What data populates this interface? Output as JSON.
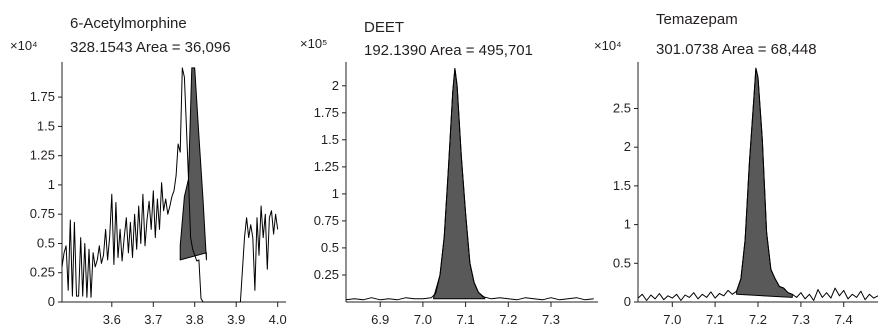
{
  "figure": {
    "fill_color": "#595959",
    "line_color": "#000000",
    "text_color": "#231f20"
  },
  "chart_data": [
    {
      "type": "area",
      "title": "6-Acetylmorphine",
      "subtitle": "328.1543 Area = 36,096",
      "ymultiplier": "×10⁴",
      "xlim": [
        3.48,
        4.02
      ],
      "ylim": [
        0,
        2.05
      ],
      "xticks": [
        3.6,
        3.7,
        3.8,
        3.9,
        4.0
      ],
      "xticklabels": [
        "3.6",
        "3.7",
        "3.8",
        "3.9",
        "4.0"
      ],
      "yticks": [
        0,
        0.25,
        0.5,
        0.75,
        1,
        1.25,
        1.5,
        1.75
      ],
      "yticklabels": [
        "0",
        "0.25",
        "0.5",
        "0.75",
        "1",
        "1.25",
        "1.5",
        "1.75"
      ],
      "trace": {
        "x": [
          3.48,
          3.485,
          3.49,
          3.495,
          3.5,
          3.505,
          3.51,
          3.515,
          3.52,
          3.525,
          3.53,
          3.535,
          3.54,
          3.545,
          3.55,
          3.555,
          3.56,
          3.565,
          3.57,
          3.575,
          3.58,
          3.585,
          3.59,
          3.595,
          3.6,
          3.605,
          3.61,
          3.615,
          3.62,
          3.625,
          3.63,
          3.635,
          3.64,
          3.645,
          3.65,
          3.655,
          3.66,
          3.665,
          3.67,
          3.675,
          3.68,
          3.685,
          3.69,
          3.695,
          3.7,
          3.705,
          3.71,
          3.715,
          3.72,
          3.725,
          3.73,
          3.735,
          3.74,
          3.745,
          3.75,
          3.755,
          3.76,
          3.765,
          3.77,
          3.775,
          3.78,
          3.785,
          3.79,
          3.795,
          3.8,
          3.805,
          3.81,
          3.815,
          3.82,
          3.825,
          3.83,
          3.84,
          3.85,
          3.86,
          3.87,
          3.88,
          3.89,
          3.9,
          3.91,
          3.92,
          3.925,
          3.93,
          3.935,
          3.94,
          3.945,
          3.95,
          3.955,
          3.96,
          3.965,
          3.97,
          3.975,
          3.98,
          3.985,
          3.99,
          3.995,
          4.0
        ],
        "y": [
          0.3,
          0.42,
          0.48,
          0.1,
          0.7,
          0.05,
          0.68,
          0.05,
          0.05,
          0.55,
          0.05,
          0.5,
          0.04,
          0.45,
          0.04,
          0.42,
          0.3,
          0.36,
          0.48,
          0.33,
          0.4,
          0.62,
          0.36,
          0.56,
          0.92,
          0.32,
          0.85,
          0.38,
          0.62,
          0.35,
          0.55,
          0.72,
          0.42,
          0.68,
          0.38,
          0.75,
          0.45,
          0.82,
          0.5,
          0.92,
          0.48,
          0.7,
          0.86,
          0.62,
          0.95,
          0.55,
          0.88,
          0.62,
          1.02,
          0.78,
          0.88,
          0.75,
          0.82,
          0.9,
          0.95,
          1.08,
          1.35,
          1.28,
          2.0,
          1.92,
          1.5,
          1.05,
          0.55,
          0.45,
          0.4,
          0.35,
          0.36,
          0.03,
          0.0,
          0.0,
          0.0,
          0.0,
          0.0,
          0.0,
          0.0,
          0.0,
          0.0,
          0.0,
          0.0,
          0.55,
          0.72,
          0.55,
          0.66,
          0.55,
          0.1,
          0.72,
          0.4,
          0.82,
          0.55,
          0.75,
          0.28,
          0.72,
          0.78,
          0.58,
          0.75,
          0.62
        ]
      },
      "peak": {
        "x": [
          3.765,
          3.775,
          3.785,
          3.793,
          3.8,
          3.81,
          3.82,
          3.828
        ],
        "y": [
          0.48,
          0.9,
          1.05,
          2.0,
          2.0,
          1.42,
          0.88,
          0.36
        ],
        "baseline": [
          0.36,
          0.42
        ]
      }
    },
    {
      "type": "area",
      "title": "DEET",
      "subtitle": "192.1390 Area = 495,701",
      "ymultiplier": "×10⁵",
      "xlim": [
        6.82,
        7.41
      ],
      "ylim": [
        0,
        2.22
      ],
      "xticks": [
        6.9,
        7.0,
        7.1,
        7.2,
        7.3
      ],
      "xticklabels": [
        "6.9",
        "7.0",
        "7.1",
        "7.2",
        "7.3"
      ],
      "yticks": [
        0.5,
        1,
        1.5,
        2
      ],
      "yticklabels": [
        "0.5",
        "1",
        "1.5",
        "2"
      ],
      "yticks_minor": [
        0.25,
        0.75,
        1.25,
        1.75
      ],
      "yticklabels_minor": [
        "0.25",
        "0.75",
        "1.25",
        "1.75"
      ],
      "trace": {
        "x": [
          6.82,
          6.84,
          6.86,
          6.88,
          6.9,
          6.92,
          6.94,
          6.96,
          6.98,
          7.0,
          7.02,
          7.03,
          7.04,
          7.05,
          7.06,
          7.07,
          7.075,
          7.08,
          7.09,
          7.1,
          7.11,
          7.12,
          7.13,
          7.14,
          7.15,
          7.16,
          7.18,
          7.2,
          7.22,
          7.24,
          7.26,
          7.28,
          7.3,
          7.32,
          7.34,
          7.36,
          7.38,
          7.4
        ],
        "y": [
          0.02,
          0.03,
          0.02,
          0.04,
          0.02,
          0.03,
          0.02,
          0.04,
          0.03,
          0.03,
          0.04,
          0.08,
          0.25,
          0.6,
          1.25,
          1.95,
          2.16,
          2.0,
          1.35,
          0.82,
          0.36,
          0.18,
          0.09,
          0.05,
          0.04,
          0.03,
          0.04,
          0.03,
          0.02,
          0.04,
          0.03,
          0.02,
          0.04,
          0.02,
          0.03,
          0.04,
          0.02,
          0.03
        ]
      },
      "peak": {
        "x": [
          7.025,
          7.04,
          7.05,
          7.06,
          7.07,
          7.075,
          7.08,
          7.09,
          7.1,
          7.11,
          7.12,
          7.13,
          7.145
        ],
        "y": [
          0.04,
          0.25,
          0.6,
          1.25,
          1.95,
          2.16,
          2.0,
          1.35,
          0.82,
          0.36,
          0.18,
          0.09,
          0.04
        ],
        "baseline": [
          0.03,
          0.03
        ]
      }
    },
    {
      "type": "area",
      "title": "Temazepam",
      "subtitle": "301.0738 Area = 68,448",
      "ymultiplier": "×10⁴",
      "xlim": [
        6.92,
        7.48
      ],
      "ylim": [
        0,
        3.1
      ],
      "xticks": [
        7.0,
        7.1,
        7.2,
        7.3,
        7.4
      ],
      "xticklabels": [
        "7.0",
        "7.1",
        "7.2",
        "7.3",
        "7.4"
      ],
      "yticks": [
        0,
        0.5,
        1,
        1.5,
        2,
        2.5
      ],
      "yticklabels": [
        "0",
        "0.5",
        "1",
        "1.5",
        "2",
        "2.5"
      ],
      "trace": {
        "x": [
          6.92,
          6.93,
          6.94,
          6.95,
          6.96,
          6.97,
          6.98,
          6.99,
          7.0,
          7.01,
          7.02,
          7.03,
          7.04,
          7.05,
          7.06,
          7.07,
          7.08,
          7.09,
          7.1,
          7.11,
          7.12,
          7.13,
          7.14,
          7.15,
          7.16,
          7.17,
          7.18,
          7.19,
          7.195,
          7.2,
          7.21,
          7.22,
          7.23,
          7.24,
          7.25,
          7.26,
          7.27,
          7.28,
          7.29,
          7.3,
          7.31,
          7.32,
          7.33,
          7.34,
          7.35,
          7.36,
          7.37,
          7.38,
          7.39,
          7.4,
          7.41,
          7.42,
          7.43,
          7.44,
          7.45,
          7.46,
          7.47,
          7.48
        ],
        "y": [
          0.05,
          0.1,
          0.02,
          0.09,
          0.04,
          0.11,
          0.03,
          0.08,
          0.05,
          0.1,
          0.02,
          0.09,
          0.06,
          0.12,
          0.04,
          0.1,
          0.06,
          0.13,
          0.05,
          0.11,
          0.08,
          0.15,
          0.1,
          0.14,
          0.3,
          0.8,
          1.8,
          2.6,
          3.02,
          2.9,
          2.1,
          0.9,
          0.42,
          0.3,
          0.2,
          0.18,
          0.12,
          0.1,
          0.06,
          0.12,
          0.04,
          0.1,
          0.02,
          0.16,
          0.06,
          0.12,
          0.05,
          0.18,
          0.08,
          0.15,
          0.04,
          0.1,
          0.06,
          0.14,
          0.03,
          0.1,
          0.05,
          0.08
        ]
      },
      "peak": {
        "x": [
          7.15,
          7.16,
          7.17,
          7.18,
          7.19,
          7.195,
          7.2,
          7.21,
          7.22,
          7.23,
          7.24,
          7.25,
          7.26,
          7.27,
          7.28
        ],
        "y": [
          0.14,
          0.3,
          0.8,
          1.8,
          2.6,
          3.02,
          2.9,
          2.1,
          0.9,
          0.42,
          0.3,
          0.2,
          0.18,
          0.12,
          0.1
        ],
        "baseline": [
          0.1,
          0.06
        ]
      }
    }
  ]
}
